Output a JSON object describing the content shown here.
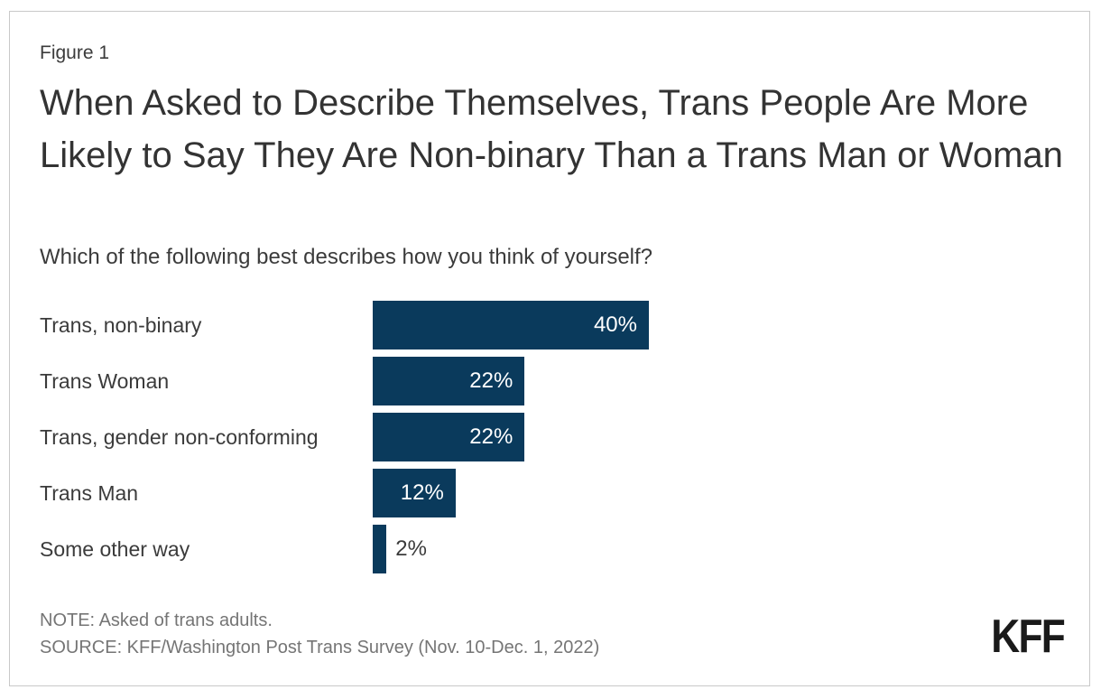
{
  "header": {
    "figure_label": "Figure 1",
    "title": "When Asked to Describe Themselves, Trans People Are More Likely to Say They Are Non-binary Than a Trans Man or Woman",
    "subtitle": "Which of the following best describes how you think of yourself?"
  },
  "chart_data": {
    "type": "bar",
    "orientation": "horizontal",
    "title": "When Asked to Describe Themselves, Trans People Are More Likely to Say They Are Non-binary Than a Trans Man or Woman",
    "subtitle": "Which of the following best describes how you think of yourself?",
    "categories": [
      "Trans, non-binary",
      "Trans Woman",
      "Trans, gender non-conforming",
      "Trans Man",
      "Some other way"
    ],
    "values": [
      40,
      22,
      22,
      12,
      2
    ],
    "value_labels": [
      "40%",
      "22%",
      "22%",
      "12%",
      "2%"
    ],
    "xlabel": "",
    "ylabel": "",
    "xlim": [
      0,
      100
    ],
    "grid": false,
    "legend": false,
    "bar_color": "#0a3a5c",
    "inside_label_color": "#ffffff",
    "outside_label_color": "#3b3b3b"
  },
  "footer": {
    "note": "NOTE: Asked of trans adults.",
    "source": "SOURCE: KFF/Washington Post Trans Survey (Nov. 10-Dec. 1, 2022)",
    "logo": "KFF"
  },
  "colors": {
    "border": "#c9c9c9",
    "title_text": "#333333",
    "body_text": "#3b3b3b",
    "footer_text": "#757575",
    "background": "#ffffff"
  }
}
